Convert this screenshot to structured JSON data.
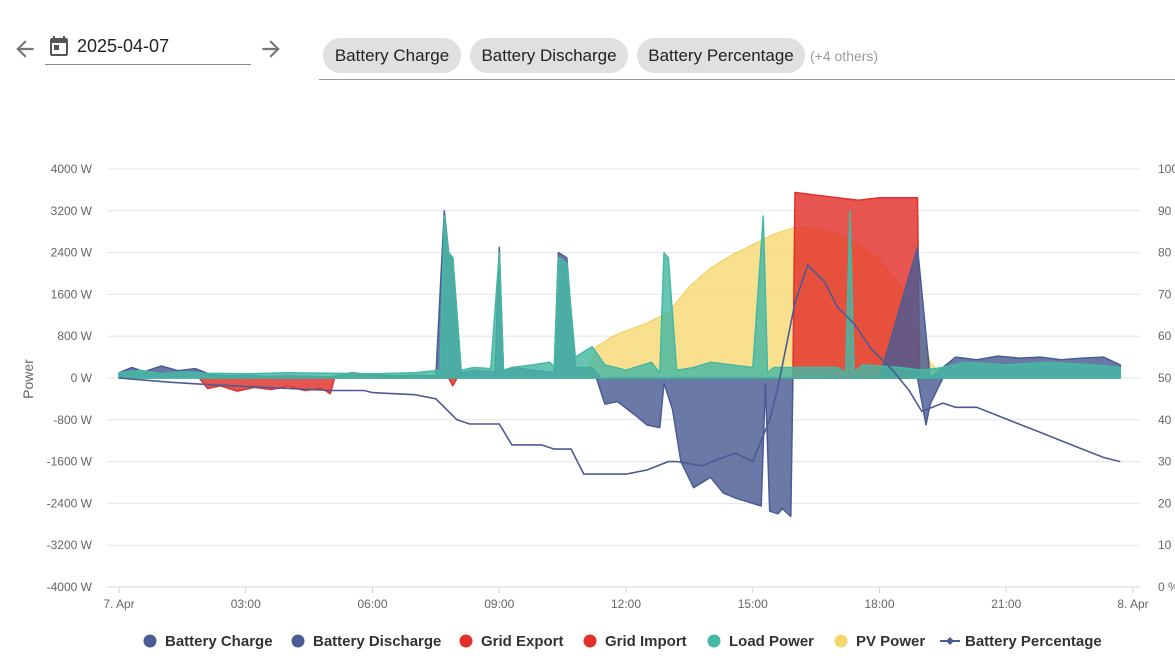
{
  "toolbar": {
    "prev_icon": "arrow-left-icon",
    "next_icon": "arrow-right-icon",
    "calendar_icon": "calendar-icon",
    "date_value": "2025-04-07",
    "chips": [
      "Battery Charge",
      "Battery Discharge",
      "Battery Percentage"
    ],
    "others_label": "(+4 others)"
  },
  "colors": {
    "battery_charge": "#4b5b94",
    "battery_discharge": "#4b5b94",
    "grid_export": "#e2302a",
    "grid_import": "#e2302a",
    "load_power": "#45b8a3",
    "pv_power": "#f5d66a",
    "battery_percentage": "#4b5b94"
  },
  "chart_data": {
    "type": "area",
    "ylabel": "Power",
    "y_ticks": [
      "4000 W",
      "3200 W",
      "2400 W",
      "1600 W",
      "800 W",
      "0 W",
      "-800 W",
      "-1600 W",
      "-2400 W",
      "-3200 W",
      "-4000 W"
    ],
    "y2_ticks": [
      "100",
      "90",
      "80",
      "70",
      "60",
      "50",
      "40",
      "30",
      "20",
      "10",
      "0 %"
    ],
    "x_ticks": [
      "7. Apr",
      "03:00",
      "06:00",
      "09:00",
      "12:00",
      "15:00",
      "18:00",
      "21:00",
      "8. Apr"
    ],
    "ylim": [
      -4000,
      4000
    ],
    "y2lim": [
      0,
      100
    ],
    "xlim_hours": [
      0,
      24
    ],
    "legend": [
      "Battery Charge",
      "Battery Discharge",
      "Grid Export",
      "Grid Import",
      "Load Power",
      "PV Power",
      "Battery Percentage"
    ],
    "legend_position": "bottom",
    "grid": true,
    "series": [
      {
        "name": "PV Power",
        "color": "#f5d66a",
        "x": [
          11.0,
          11.3,
          11.7,
          12.0,
          12.5,
          13.0,
          13.5,
          14.0,
          14.5,
          15.0,
          15.5,
          16.0,
          16.5,
          17.0,
          17.5,
          18.0,
          18.5,
          18.9,
          19.2,
          19.5
        ],
        "values": [
          0,
          600,
          800,
          900,
          1050,
          1250,
          1750,
          2100,
          2350,
          2550,
          2750,
          2880,
          2860,
          2750,
          2550,
          2250,
          1750,
          1100,
          300,
          0
        ]
      },
      {
        "name": "Battery Charge",
        "color": "#4b5b94",
        "x": [
          0,
          0.3,
          0.6,
          1.0,
          1.4,
          1.8,
          2.2,
          2.6,
          3.0,
          3.5,
          4.0,
          4.5,
          5.0,
          5.5,
          6.0,
          6.5,
          7.0,
          7.5,
          7.7,
          7.8,
          7.9,
          8.1,
          8.4,
          8.9,
          9.0,
          9.1,
          9.3,
          9.8,
          10.3,
          10.4,
          10.6,
          10.8,
          11.2,
          11.4,
          18.0,
          18.9,
          19.2,
          19.8,
          20.3,
          20.8,
          21.3,
          21.8,
          22.3,
          22.8,
          23.3,
          23.7
        ],
        "values": [
          100,
          200,
          120,
          230,
          140,
          180,
          60,
          40,
          50,
          30,
          40,
          30,
          20,
          100,
          60,
          40,
          50,
          40,
          3200,
          2400,
          2300,
          100,
          150,
          120,
          2500,
          100,
          200,
          150,
          100,
          2400,
          2300,
          200,
          200,
          0,
          0,
          2500,
          0,
          400,
          350,
          420,
          380,
          400,
          350,
          380,
          400,
          250
        ]
      },
      {
        "name": "Battery Discharge",
        "color": "#4b5b94",
        "x": [
          11.3,
          11.5,
          11.8,
          12.2,
          12.5,
          12.8,
          12.9,
          13.1,
          13.3,
          13.6,
          14.0,
          14.3,
          14.6,
          15.0,
          15.2,
          15.3,
          15.4,
          15.6,
          15.7,
          15.9,
          15.95,
          18.9,
          19.1,
          19.2,
          19.5
        ],
        "values": [
          0,
          -500,
          -450,
          -700,
          -900,
          -950,
          -100,
          -600,
          -1600,
          -2100,
          -1900,
          -2200,
          -2300,
          -2400,
          -2450,
          -100,
          -2550,
          -2600,
          -2500,
          -2650,
          0,
          0,
          -900,
          -500,
          0
        ]
      },
      {
        "name": "Load Power",
        "color": "#45b8a3",
        "x": [
          0,
          0.5,
          1.0,
          1.5,
          2.0,
          3.0,
          4.0,
          5.0,
          6.0,
          7.0,
          7.6,
          7.7,
          7.8,
          7.9,
          8.1,
          8.4,
          8.8,
          9.0,
          9.1,
          9.3,
          9.8,
          10.2,
          10.3,
          10.4,
          10.6,
          10.8,
          11.2,
          11.5,
          12.0,
          12.6,
          12.8,
          12.9,
          13.0,
          13.2,
          13.6,
          14.0,
          15.0,
          15.25,
          15.35,
          15.5,
          16.0,
          17.0,
          17.2,
          17.3,
          17.4,
          17.6,
          18.5,
          19.0,
          19.5,
          20.0,
          21.0,
          22.0,
          23.0,
          23.7
        ],
        "values": [
          100,
          150,
          80,
          120,
          90,
          80,
          100,
          90,
          80,
          100,
          150,
          3100,
          2400,
          2300,
          150,
          200,
          180,
          2400,
          150,
          200,
          250,
          300,
          200,
          2300,
          2200,
          400,
          600,
          250,
          150,
          300,
          100,
          2400,
          2300,
          150,
          200,
          300,
          200,
          3100,
          100,
          200,
          200,
          200,
          100,
          3200,
          100,
          250,
          200,
          150,
          200,
          300,
          250,
          300,
          250,
          200
        ]
      },
      {
        "name": "Grid Export",
        "color": "#e2302a",
        "x": [
          1.9,
          2.1,
          2.4,
          2.8,
          3.2,
          3.6,
          4.0,
          4.4,
          4.8,
          5.0,
          5.1,
          7.8,
          7.9,
          8.0
        ],
        "values": [
          0,
          -200,
          -150,
          -250,
          -180,
          -220,
          -160,
          -240,
          -200,
          -300,
          0,
          0,
          -150,
          0
        ]
      },
      {
        "name": "Grid Import",
        "color": "#e2302a",
        "x": [
          15.95,
          16.0,
          16.5,
          17.0,
          17.5,
          18.0,
          18.5,
          18.9,
          18.95
        ],
        "values": [
          0,
          3550,
          3500,
          3450,
          3400,
          3450,
          3450,
          3450,
          0
        ]
      },
      {
        "name": "Battery Percentage",
        "color": "#4b5b94",
        "axis": "percent",
        "x": [
          0,
          1.2,
          2.0,
          3.0,
          4.0,
          5.0,
          5.8,
          6.0,
          7.0,
          7.5,
          8.0,
          8.3,
          9.0,
          9.3,
          10.0,
          10.3,
          10.7,
          11.0,
          11.5,
          12.0,
          12.5,
          13.0,
          13.2,
          13.8,
          14.3,
          14.6,
          15.0,
          15.2,
          15.4,
          15.6,
          16.0,
          16.3,
          16.7,
          17.0,
          17.4,
          17.8,
          18.3,
          18.7,
          19.0,
          19.5,
          19.8,
          20.3,
          20.8,
          21.3,
          21.8,
          22.3,
          22.8,
          23.3,
          23.7
        ],
        "values": [
          50,
          49,
          48.5,
          48,
          47.5,
          47,
          47,
          46.5,
          46,
          45,
          40,
          39,
          39,
          34,
          34,
          33,
          33,
          27,
          27,
          27,
          28,
          30,
          30,
          29,
          31,
          32,
          30,
          35,
          40,
          48,
          68,
          77,
          73,
          67,
          63,
          57,
          52,
          47,
          42,
          44,
          43,
          43,
          41,
          39,
          37,
          35,
          33,
          31,
          30
        ]
      }
    ]
  }
}
